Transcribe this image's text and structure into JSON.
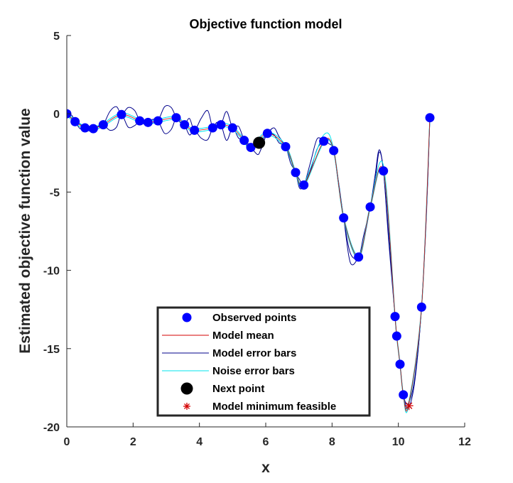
{
  "chart_data": {
    "type": "scatter",
    "title": "Objective function model",
    "xlabel": "x",
    "ylabel": "Estimated objective function value",
    "xlim": [
      0,
      12
    ],
    "ylim": [
      -20,
      5
    ],
    "xticks": [
      "0",
      "2",
      "4",
      "6",
      "8",
      "10",
      "12"
    ],
    "yticks": [
      "5",
      "0",
      "-5",
      "-10",
      "-15",
      "-20"
    ],
    "legend_position": "bottom-center",
    "colors": {
      "observed": "#0000ff",
      "model_mean": "#d40000",
      "model_error": "#00008b",
      "noise_error": "#00e5ee",
      "next_point": "#000000",
      "model_min": "#d40000"
    },
    "series": [
      {
        "name": "Observed points",
        "marker": "circle",
        "x": [
          0.0,
          0.25,
          0.55,
          0.8,
          1.1,
          1.65,
          2.2,
          2.45,
          2.75,
          3.3,
          3.55,
          3.85,
          4.4,
          4.65,
          5.0,
          5.35,
          5.55,
          6.05,
          6.6,
          6.9,
          7.15,
          7.75,
          8.05,
          8.35,
          8.8,
          9.15,
          9.55,
          9.9,
          9.95,
          10.05,
          10.15,
          10.7,
          10.95
        ],
        "y": [
          0.0,
          -0.5,
          -0.9,
          -0.95,
          -0.7,
          -0.05,
          -0.45,
          -0.55,
          -0.45,
          -0.25,
          -0.7,
          -1.05,
          -0.9,
          -0.7,
          -0.9,
          -1.7,
          -2.15,
          -1.25,
          -2.1,
          -3.75,
          -4.55,
          -1.75,
          -2.35,
          -6.65,
          -9.15,
          -5.95,
          -3.65,
          -12.95,
          -14.2,
          -16.0,
          -17.95,
          -12.35,
          -0.25
        ]
      },
      {
        "name": "Model mean",
        "x": [
          0.0,
          0.25,
          0.55,
          0.8,
          1.1,
          1.65,
          2.2,
          2.45,
          2.75,
          3.3,
          3.55,
          3.85,
          4.4,
          4.65,
          5.0,
          5.35,
          5.55,
          6.05,
          6.6,
          6.9,
          7.15,
          7.75,
          8.05,
          8.35,
          8.8,
          9.15,
          9.55,
          9.9,
          9.95,
          10.05,
          10.15,
          10.3,
          10.7,
          10.95
        ],
        "y": [
          0.0,
          -0.5,
          -0.9,
          -0.95,
          -0.7,
          -0.05,
          -0.45,
          -0.55,
          -0.45,
          -0.25,
          -0.7,
          -1.05,
          -0.9,
          -0.7,
          -0.9,
          -1.7,
          -2.15,
          -1.25,
          -2.1,
          -3.75,
          -4.55,
          -1.75,
          -2.35,
          -6.65,
          -9.15,
          -5.95,
          -3.65,
          -12.95,
          -14.2,
          -16.0,
          -17.95,
          -18.65,
          -12.35,
          -0.25
        ]
      },
      {
        "name": "Model error bars",
        "x": [
          0.0,
          0.15,
          0.25,
          0.4,
          0.55,
          0.68,
          0.8,
          0.95,
          1.1,
          1.3,
          1.5,
          1.65,
          1.85,
          2.05,
          2.2,
          2.32,
          2.45,
          2.6,
          2.75,
          2.95,
          3.15,
          3.3,
          3.42,
          3.55,
          3.7,
          3.85,
          4.05,
          4.25,
          4.4,
          4.52,
          4.65,
          4.82,
          5.0,
          5.18,
          5.35,
          5.45,
          5.55,
          5.75,
          5.85,
          6.05,
          6.25,
          6.4,
          6.6,
          6.75,
          6.9,
          7.02,
          7.15,
          7.35,
          7.55,
          7.75,
          7.9,
          8.05,
          8.2,
          8.35,
          8.55,
          8.8,
          8.95,
          9.15,
          9.3,
          9.42,
          9.55,
          9.7,
          9.9,
          9.95,
          10.05,
          10.15,
          10.3,
          10.5,
          10.7,
          10.85,
          10.95
        ],
        "upper": [
          0.0,
          -0.1,
          -0.5,
          -0.65,
          -0.9,
          -0.8,
          -0.95,
          -0.8,
          -0.7,
          0.15,
          0.45,
          -0.05,
          0.4,
          0.2,
          -0.45,
          -0.4,
          -0.55,
          -0.35,
          -0.45,
          0.45,
          0.4,
          -0.25,
          -0.5,
          -0.7,
          -0.3,
          -1.05,
          -0.3,
          0.2,
          -0.9,
          -0.55,
          -0.7,
          0.15,
          -0.9,
          -0.8,
          -1.7,
          -1.85,
          -2.15,
          -2.0,
          -1.8,
          -1.25,
          -0.9,
          -1.45,
          -2.1,
          -2.9,
          -3.75,
          -4.2,
          -4.55,
          -3.1,
          -1.6,
          -1.75,
          -1.65,
          -2.35,
          -4.4,
          -6.65,
          -8.9,
          -9.15,
          -7.8,
          -5.95,
          -3.9,
          -2.3,
          -3.65,
          -7.5,
          -12.95,
          -14.2,
          -16.0,
          -17.95,
          -18.5,
          -16.8,
          -12.35,
          -6.0,
          -0.25
        ],
        "lower": [
          0.0,
          -0.3,
          -0.5,
          -0.95,
          -0.9,
          -1.1,
          -0.95,
          -0.95,
          -0.7,
          -1.05,
          -0.85,
          -0.05,
          -0.85,
          -0.75,
          -0.45,
          -0.65,
          -0.55,
          -0.6,
          -0.45,
          -1.25,
          -1.0,
          -0.25,
          -0.55,
          -0.7,
          -1.35,
          -1.05,
          -1.55,
          -1.65,
          -0.9,
          -0.9,
          -0.7,
          -1.7,
          -0.9,
          -1.55,
          -1.7,
          -2.2,
          -2.15,
          -2.6,
          -2.3,
          -1.25,
          -1.35,
          -1.85,
          -2.1,
          -3.15,
          -3.75,
          -4.75,
          -4.55,
          -3.6,
          -2.25,
          -1.75,
          -1.9,
          -2.35,
          -4.6,
          -6.65,
          -9.5,
          -9.15,
          -8.2,
          -5.95,
          -4.25,
          -2.45,
          -3.65,
          -7.9,
          -12.95,
          -14.2,
          -16.0,
          -17.95,
          -18.8,
          -17.0,
          -12.35,
          -6.3,
          -0.25
        ]
      },
      {
        "name": "Noise error bars",
        "x": [
          0.0,
          0.25,
          0.55,
          0.8,
          1.1,
          1.65,
          2.2,
          2.45,
          2.75,
          3.3,
          3.55,
          3.85,
          4.4,
          4.65,
          5.0,
          5.35,
          5.55,
          6.05,
          6.6,
          6.9,
          7.15,
          7.75,
          8.05,
          8.35,
          8.8,
          9.15,
          9.55,
          9.9,
          9.95,
          10.05,
          10.15,
          10.3,
          10.7,
          10.95
        ],
        "upper": [
          0.1,
          -0.4,
          -0.8,
          -0.85,
          -0.6,
          0.05,
          -0.35,
          -0.45,
          -0.35,
          -0.15,
          -0.6,
          -0.95,
          -0.8,
          -0.6,
          -0.8,
          -1.6,
          -2.05,
          -1.15,
          -2.0,
          -3.65,
          -4.45,
          -1.35,
          -2.25,
          -6.55,
          -9.05,
          -5.85,
          -3.3,
          -12.85,
          -14.1,
          -15.9,
          -17.85,
          -18.55,
          -12.25,
          -0.15
        ],
        "lower": [
          -0.1,
          -0.6,
          -1.0,
          -1.05,
          -0.8,
          -0.15,
          -0.55,
          -0.65,
          -0.55,
          -0.35,
          -0.8,
          -1.15,
          -1.0,
          -0.8,
          -1.0,
          -1.8,
          -2.25,
          -1.35,
          -2.2,
          -3.85,
          -4.65,
          -1.85,
          -2.45,
          -6.75,
          -9.25,
          -6.05,
          -3.75,
          -13.05,
          -14.3,
          -16.1,
          -18.05,
          -18.75,
          -12.45,
          -0.35
        ]
      },
      {
        "name": "Next point",
        "marker": "circle-large",
        "x": [
          5.8
        ],
        "y": [
          -1.85
        ]
      },
      {
        "name": "Model minimum feasible",
        "marker": "asterisk",
        "x": [
          10.32
        ],
        "y": [
          -18.65
        ]
      }
    ]
  }
}
